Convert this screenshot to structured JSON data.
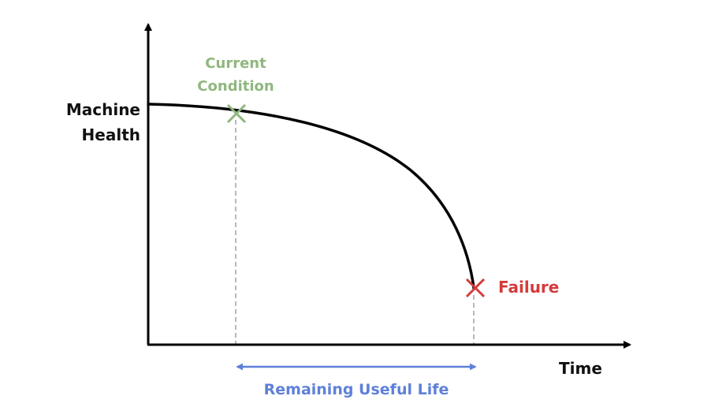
{
  "diagram": {
    "y_axis_label": [
      "Machine",
      "Health"
    ],
    "x_axis_label": "Time",
    "current_condition_label": [
      "Current",
      "Condition"
    ],
    "failure_label": "Failure",
    "remaining_life_label": "Remaining Useful Life"
  },
  "colors": {
    "axis": "#000000",
    "curve": "#000000",
    "current_condition": "#8fb77e",
    "failure": "#d63a3a",
    "guide_lines": "#b9b9b9",
    "remaining_life": "#5e80d8"
  }
}
